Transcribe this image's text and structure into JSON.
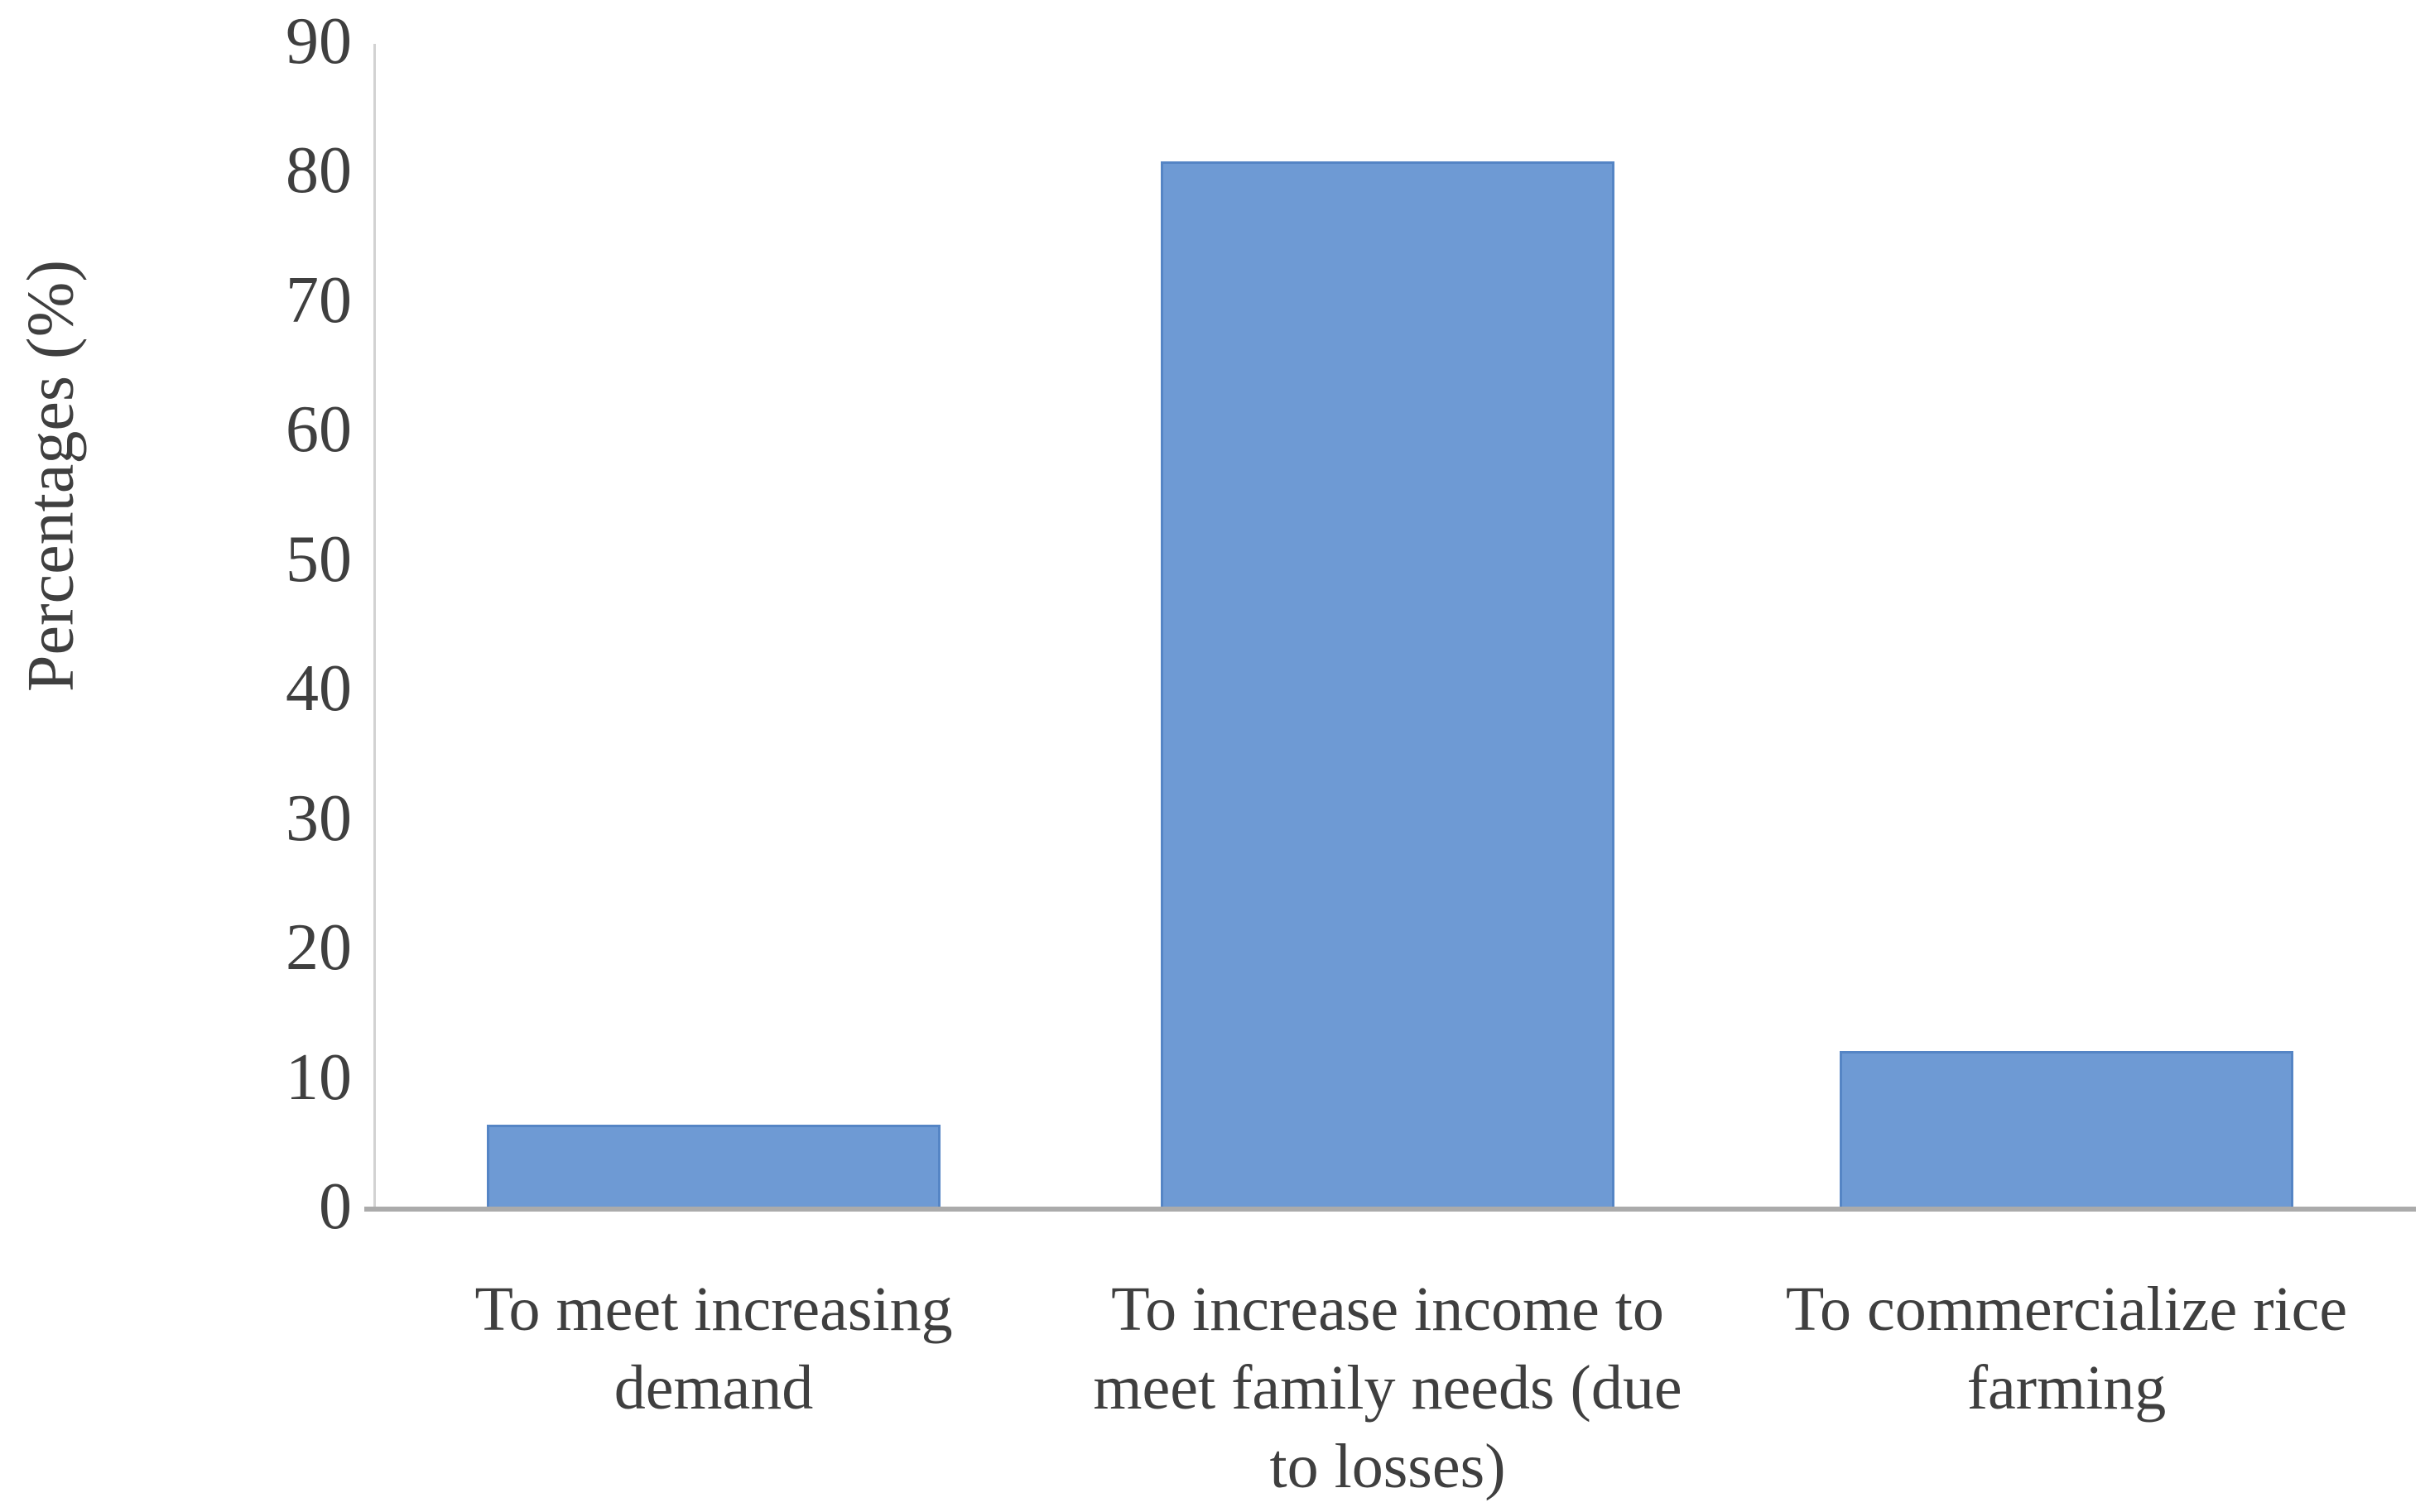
{
  "figure": {
    "background": "#FFFFFF"
  },
  "chart_data": {
    "type": "bar",
    "title": "",
    "ylabel": "Percentages (%)",
    "xlabel": "",
    "categories": [
      "To meet increasing\ndemand",
      "To increase income to\nmeet family needs (due\nto losses)",
      "To commercialize rice\nfarming"
    ],
    "values": [
      6.5,
      80.9,
      12.2
    ],
    "ylim": [
      0,
      90
    ],
    "ytick_step": 10,
    "yticks": [
      0,
      10,
      20,
      30,
      40,
      50,
      60,
      70,
      80,
      90
    ],
    "grid": false,
    "legend": false,
    "bar_color": "#6E9AD4",
    "bar_border_color": "#5585C5",
    "axis_line_color": "#ABABAB",
    "text_color": "#3F3F3F"
  }
}
